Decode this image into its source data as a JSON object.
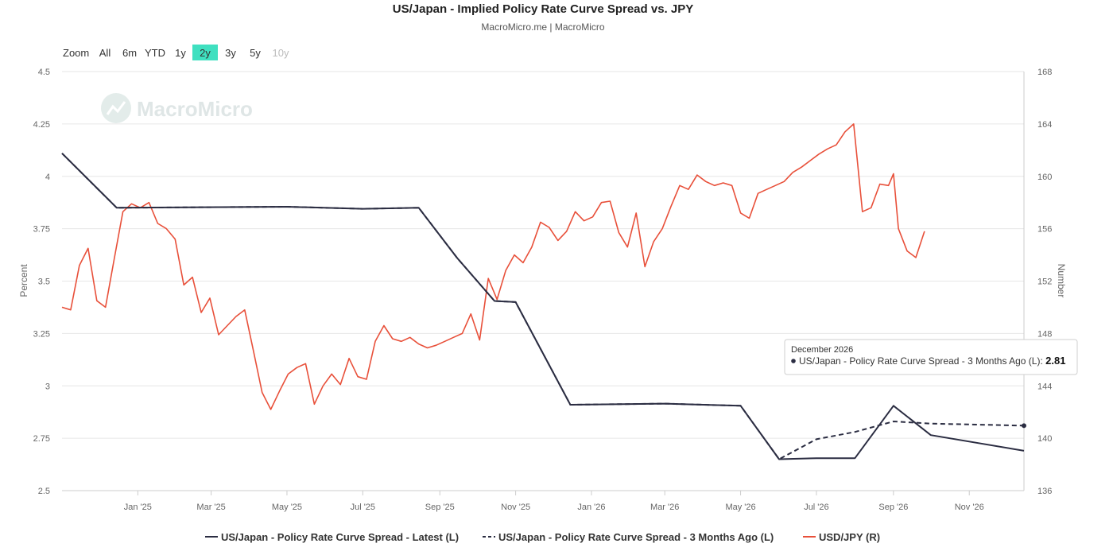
{
  "title": "US/Japan - Implied Policy Rate Curve Spread vs. JPY",
  "subtitle": "MacroMicro.me | MacroMicro",
  "watermark": "MacroMicro",
  "zoom": {
    "label": "Zoom",
    "buttons": [
      "All",
      "6m",
      "YTD",
      "1y",
      "2y",
      "3y",
      "5y",
      "10y"
    ],
    "active": "2y",
    "disabled": [
      "10y"
    ],
    "active_color": "#3fe0c0"
  },
  "tooltip": {
    "date": "December 2026",
    "text": "US/Japan - Policy Rate Curve Spread - 3 Months Ago (L): ",
    "value": "2.81"
  },
  "chart_data": {
    "type": "line",
    "x_type": "date",
    "x_ticks": [
      "Jan '25",
      "Mar '25",
      "May '25",
      "Jul '25",
      "Sep '25",
      "Nov '25",
      "Jan '26",
      "Mar '26",
      "May '26",
      "Jul '26",
      "Sep '26",
      "Nov '26"
    ],
    "x_tick_dates": [
      "2025-01-01",
      "2025-03-01",
      "2025-05-01",
      "2025-07-01",
      "2025-09-01",
      "2025-11-01",
      "2026-01-01",
      "2026-03-01",
      "2026-05-01",
      "2026-07-01",
      "2026-09-01",
      "2026-11-01"
    ],
    "x_range": [
      "2024-11-01",
      "2026-12-15"
    ],
    "y_left": {
      "label": "Percent",
      "range": [
        2.5,
        4.5
      ],
      "ticks": [
        "4.5",
        "4.25",
        "4",
        "3.75",
        "3.5",
        "3.25",
        "3",
        "2.75",
        "2.5"
      ]
    },
    "y_right": {
      "label": "Number",
      "range": [
        136,
        168
      ],
      "ticks": [
        "168",
        "164",
        "160",
        "156",
        "152",
        "148",
        "144",
        "140",
        "136"
      ]
    },
    "grid": true,
    "legend_position": "bottom",
    "series": [
      {
        "name": "US/Japan - Policy Rate Curve Spread - Latest (L)",
        "axis": "left",
        "color": "#2b2d42",
        "dash": "solid",
        "points": [
          [
            "2024-11-01",
            4.11
          ],
          [
            "2024-12-15",
            3.85
          ],
          [
            "2025-05-01",
            3.855
          ],
          [
            "2025-07-01",
            3.845
          ],
          [
            "2025-08-15",
            3.85
          ],
          [
            "2025-09-15",
            3.61
          ],
          [
            "2025-10-15",
            3.405
          ],
          [
            "2025-11-01",
            3.4
          ],
          [
            "2025-12-15",
            2.91
          ],
          [
            "2026-03-01",
            2.915
          ],
          [
            "2026-04-01",
            2.91
          ],
          [
            "2026-05-01",
            2.905
          ],
          [
            "2026-06-01",
            2.65
          ],
          [
            "2026-07-01",
            2.655
          ],
          [
            "2026-08-01",
            2.655
          ],
          [
            "2026-09-01",
            2.905
          ],
          [
            "2026-10-01",
            2.765
          ],
          [
            "2026-12-15",
            2.69
          ]
        ]
      },
      {
        "name": "US/Japan - Policy Rate Curve Spread - 3 Months Ago (L)",
        "axis": "left",
        "color": "#2b2d42",
        "dash": "dashed",
        "points": [
          [
            "2024-11-01",
            4.11
          ],
          [
            "2024-12-15",
            3.85
          ],
          [
            "2025-05-01",
            3.855
          ],
          [
            "2025-07-01",
            3.845
          ],
          [
            "2025-08-15",
            3.85
          ],
          [
            "2025-09-15",
            3.61
          ],
          [
            "2025-10-15",
            3.405
          ],
          [
            "2025-11-01",
            3.4
          ],
          [
            "2025-12-15",
            2.91
          ],
          [
            "2026-03-01",
            2.915
          ],
          [
            "2026-04-01",
            2.91
          ],
          [
            "2026-05-01",
            2.905
          ],
          [
            "2026-06-01",
            2.65
          ],
          [
            "2026-07-01",
            2.745
          ],
          [
            "2026-08-01",
            2.78
          ],
          [
            "2026-09-01",
            2.83
          ],
          [
            "2026-10-01",
            2.82
          ],
          [
            "2026-12-15",
            2.81
          ]
        ]
      },
      {
        "name": "USD/JPY (R)",
        "axis": "right",
        "color": "#e8503a",
        "dash": "solid",
        "points": [
          [
            "2024-11-01",
            150.0
          ],
          [
            "2024-11-08",
            149.8
          ],
          [
            "2024-11-15",
            153.2
          ],
          [
            "2024-11-22",
            154.5
          ],
          [
            "2024-11-29",
            150.5
          ],
          [
            "2024-12-06",
            150.0
          ],
          [
            "2024-12-13",
            153.7
          ],
          [
            "2024-12-20",
            157.3
          ],
          [
            "2024-12-27",
            157.9
          ],
          [
            "2025-01-03",
            157.6
          ],
          [
            "2025-01-10",
            158.0
          ],
          [
            "2025-01-17",
            156.4
          ],
          [
            "2025-01-24",
            156.0
          ],
          [
            "2025-01-31",
            155.2
          ],
          [
            "2025-02-07",
            151.7
          ],
          [
            "2025-02-14",
            152.3
          ],
          [
            "2025-02-21",
            149.6
          ],
          [
            "2025-02-28",
            150.7
          ],
          [
            "2025-03-07",
            147.9
          ],
          [
            "2025-03-14",
            148.6
          ],
          [
            "2025-03-21",
            149.3
          ],
          [
            "2025-03-28",
            149.8
          ],
          [
            "2025-04-04",
            146.7
          ],
          [
            "2025-04-11",
            143.5
          ],
          [
            "2025-04-18",
            142.2
          ],
          [
            "2025-04-25",
            143.6
          ],
          [
            "2025-05-02",
            144.9
          ],
          [
            "2025-05-09",
            145.4
          ],
          [
            "2025-05-16",
            145.7
          ],
          [
            "2025-05-23",
            142.6
          ],
          [
            "2025-05-30",
            144.0
          ],
          [
            "2025-06-06",
            144.9
          ],
          [
            "2025-06-13",
            144.1
          ],
          [
            "2025-06-20",
            146.1
          ],
          [
            "2025-06-27",
            144.7
          ],
          [
            "2025-07-04",
            144.5
          ],
          [
            "2025-07-11",
            147.4
          ],
          [
            "2025-07-18",
            148.6
          ],
          [
            "2025-07-25",
            147.6
          ],
          [
            "2025-08-01",
            147.4
          ],
          [
            "2025-08-08",
            147.7
          ],
          [
            "2025-08-15",
            147.2
          ],
          [
            "2025-08-22",
            146.9
          ],
          [
            "2025-08-29",
            147.1
          ],
          [
            "2025-09-05",
            147.4
          ],
          [
            "2025-09-12",
            147.7
          ],
          [
            "2025-09-19",
            148.0
          ],
          [
            "2025-09-26",
            149.5
          ],
          [
            "2025-10-03",
            147.5
          ],
          [
            "2025-10-10",
            152.2
          ],
          [
            "2025-10-17",
            150.6
          ],
          [
            "2025-10-24",
            152.8
          ],
          [
            "2025-10-31",
            154.0
          ],
          [
            "2025-11-07",
            153.4
          ],
          [
            "2025-11-14",
            154.6
          ],
          [
            "2025-11-21",
            156.5
          ],
          [
            "2025-11-28",
            156.1
          ],
          [
            "2025-12-05",
            155.1
          ],
          [
            "2025-12-12",
            155.8
          ],
          [
            "2025-12-19",
            157.3
          ],
          [
            "2025-12-26",
            156.6
          ],
          [
            "2026-01-02",
            156.9
          ],
          [
            "2026-01-09",
            158.0
          ],
          [
            "2026-01-16",
            158.1
          ],
          [
            "2026-01-23",
            155.7
          ],
          [
            "2026-01-30",
            154.6
          ],
          [
            "2026-02-06",
            157.2
          ],
          [
            "2026-02-13",
            153.1
          ],
          [
            "2026-02-20",
            155.0
          ],
          [
            "2026-02-27",
            156.0
          ],
          [
            "2026-03-06",
            157.7
          ],
          [
            "2026-03-13",
            159.3
          ],
          [
            "2026-03-20",
            159.0
          ],
          [
            "2026-03-27",
            160.1
          ],
          [
            "2026-04-03",
            159.6
          ],
          [
            "2026-04-10",
            159.3
          ],
          [
            "2026-04-17",
            159.5
          ],
          [
            "2026-04-24",
            159.3
          ],
          [
            "2026-05-01",
            157.2
          ],
          [
            "2026-05-08",
            156.8
          ],
          [
            "2026-05-15",
            158.7
          ],
          [
            "2026-05-22",
            159.0
          ],
          [
            "2026-05-29",
            159.3
          ],
          [
            "2026-06-05",
            159.6
          ],
          [
            "2026-06-12",
            160.3
          ],
          [
            "2026-06-19",
            160.7
          ],
          [
            "2026-06-26",
            161.2
          ],
          [
            "2026-07-03",
            161.7
          ],
          [
            "2026-07-10",
            162.1
          ],
          [
            "2026-07-17",
            162.4
          ],
          [
            "2026-07-24",
            163.4
          ],
          [
            "2026-07-31",
            164.0
          ],
          [
            "2026-08-07",
            157.3
          ],
          [
            "2026-08-14",
            157.6
          ],
          [
            "2026-08-21",
            159.4
          ],
          [
            "2026-08-28",
            159.3
          ],
          [
            "2026-09-01",
            160.2
          ],
          [
            "2026-09-05",
            156.0
          ],
          [
            "2026-09-12",
            154.3
          ],
          [
            "2026-09-19",
            153.8
          ],
          [
            "2026-09-26",
            155.8
          ]
        ]
      }
    ]
  }
}
